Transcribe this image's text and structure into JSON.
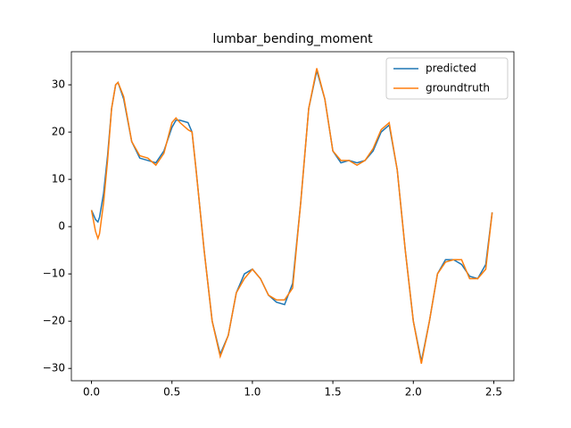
{
  "chart_data": {
    "type": "line",
    "title": "lumbar_bending_moment",
    "x": [
      0,
      0.025,
      0.04,
      0.05,
      0.075,
      0.1,
      0.125,
      0.15,
      0.165,
      0.2,
      0.25,
      0.3,
      0.35,
      0.4,
      0.45,
      0.5,
      0.525,
      0.55,
      0.6,
      0.625,
      0.65,
      0.7,
      0.75,
      0.8,
      0.85,
      0.9,
      0.95,
      1.0,
      1.05,
      1.1,
      1.15,
      1.2,
      1.25,
      1.3,
      1.35,
      1.4,
      1.45,
      1.5,
      1.55,
      1.6,
      1.65,
      1.7,
      1.75,
      1.8,
      1.85,
      1.9,
      1.95,
      2.0,
      2.05,
      2.1,
      2.15,
      2.2,
      2.25,
      2.3,
      2.35,
      2.4,
      2.45,
      2.49
    ],
    "series": [
      {
        "name": "predicted",
        "color": "#1f77b4",
        "values": [
          3.5,
          1.5,
          1,
          2,
          7,
          15,
          25,
          30,
          30.5,
          27,
          18,
          14.5,
          14,
          13.5,
          16,
          21,
          22.5,
          22.5,
          22,
          20,
          12,
          -5,
          -20,
          -27,
          -23,
          -14,
          -10,
          -9,
          -11,
          -14.5,
          -16,
          -16.5,
          -12,
          5,
          25,
          33,
          27,
          16,
          13.5,
          14,
          13.5,
          14,
          16,
          20,
          21.5,
          12,
          -5,
          -20,
          -28.5,
          -20,
          -10,
          -7,
          -7,
          -8,
          -10.5,
          -11,
          -8,
          3
        ]
      },
      {
        "name": "groundtruth",
        "color": "#ff7f0e",
        "values": [
          3.5,
          -1,
          -2.5,
          -1.5,
          5,
          14,
          25,
          30,
          30.5,
          27.5,
          18,
          15,
          14.5,
          13,
          15.5,
          22,
          23,
          22,
          20.5,
          20,
          12,
          -5,
          -20,
          -27.5,
          -23,
          -14,
          -11,
          -9,
          -11,
          -14.5,
          -15.5,
          -15.5,
          -13,
          5,
          25,
          33.5,
          27,
          16,
          14,
          14,
          13,
          14,
          16.5,
          20.5,
          22,
          12,
          -5,
          -20,
          -29,
          -20,
          -10,
          -7.5,
          -7,
          -7,
          -11,
          -11,
          -9,
          3
        ]
      }
    ],
    "xlim": [
      -0.125,
      2.625
    ],
    "ylim": [
      -32.6,
      37
    ],
    "xticks": [
      {
        "value": 0,
        "label": "0.0"
      },
      {
        "value": 0.5,
        "label": "0.5"
      },
      {
        "value": 1,
        "label": "1.0"
      },
      {
        "value": 1.5,
        "label": "1.5"
      },
      {
        "value": 2,
        "label": "2.0"
      },
      {
        "value": 2.5,
        "label": "2.5"
      }
    ],
    "yticks": [
      {
        "value": -30,
        "label": "−30"
      },
      {
        "value": -20,
        "label": "−20"
      },
      {
        "value": -10,
        "label": "−10"
      },
      0,
      10,
      20,
      30
    ],
    "legend": "upper right"
  }
}
